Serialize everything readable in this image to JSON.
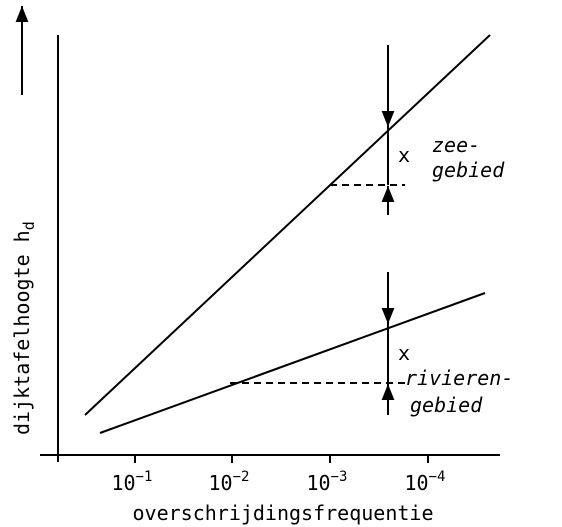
{
  "axes": {
    "y_label": {
      "text": "dijktafelhoogte h",
      "subscript": "d"
    },
    "x_label": "overschrijdingsfrequentie",
    "x_ticks": [
      {
        "base": "10",
        "exponent": "−1"
      },
      {
        "base": "10",
        "exponent": "−2"
      },
      {
        "base": "10",
        "exponent": "−3"
      },
      {
        "base": "10",
        "exponent": "−4"
      }
    ]
  },
  "annotations": {
    "sea": [
      "zee-",
      "gebied"
    ],
    "river": [
      "rivieren-",
      "gebied"
    ],
    "sea_margin": "x",
    "river_margin": "x"
  }
}
